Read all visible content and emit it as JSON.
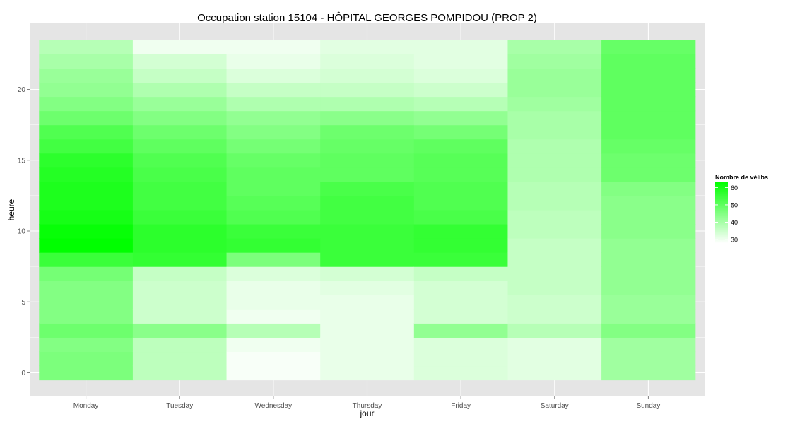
{
  "chart_data": {
    "type": "heatmap",
    "title": "Occupation station 15104 - HÔPITAL GEORGES POMPIDOU (PROP 2)",
    "xlabel": "jour",
    "ylabel": "heure",
    "x": [
      "Monday",
      "Tuesday",
      "Wednesday",
      "Thursday",
      "Friday",
      "Saturday",
      "Sunday"
    ],
    "y": [
      0,
      1,
      2,
      3,
      4,
      5,
      6,
      7,
      8,
      9,
      10,
      11,
      12,
      13,
      14,
      15,
      16,
      17,
      18,
      19,
      20,
      21,
      22,
      23
    ],
    "y_ticks": [
      0,
      5,
      10,
      15,
      20
    ],
    "values": [
      [
        46,
        46,
        45,
        48,
        45,
        45,
        45,
        47,
        55,
        63,
        62,
        60,
        59,
        59,
        58,
        57,
        54,
        52,
        48,
        45,
        43,
        42,
        40,
        38
      ],
      [
        37,
        37,
        37,
        44,
        35,
        35,
        35,
        36,
        56,
        57,
        57,
        55,
        54,
        54,
        53,
        52,
        50,
        48,
        45,
        42,
        39,
        36,
        34,
        30
      ],
      [
        29,
        29,
        30,
        38,
        30,
        31,
        31,
        33,
        46,
        56,
        55,
        52,
        51,
        50,
        50,
        49,
        47,
        45,
        43,
        39,
        36,
        33,
        31,
        30
      ],
      [
        31,
        31,
        31,
        31,
        31,
        31,
        32,
        34,
        55,
        55,
        55,
        54,
        54,
        53,
        50,
        50,
        49,
        48,
        44,
        39,
        36,
        34,
        33,
        32
      ],
      [
        33,
        33,
        33,
        43,
        34,
        34,
        34,
        36,
        55,
        56,
        56,
        53,
        52,
        52,
        51,
        51,
        50,
        47,
        43,
        38,
        35,
        33,
        32,
        32
      ],
      [
        32,
        32,
        32,
        38,
        35,
        35,
        36,
        36,
        36,
        36,
        37,
        37,
        38,
        38,
        39,
        39,
        39,
        40,
        40,
        41,
        42,
        42,
        41,
        40
      ],
      [
        41,
        41,
        41,
        45,
        42,
        42,
        43,
        43,
        43,
        43,
        44,
        44,
        44,
        45,
        48,
        48,
        49,
        50,
        50,
        50,
        50,
        50,
        50,
        49
      ]
    ],
    "legend": {
      "title": "Nombre de vélibs",
      "ticks": [
        60,
        50,
        40,
        30
      ],
      "min": 28,
      "max": 63,
      "low_color": "#ffffff",
      "high_color": "#00ff00",
      "placement": "right"
    },
    "grid": true,
    "panel_color": "#e5e5e5",
    "grid_color": "#ffffff"
  }
}
